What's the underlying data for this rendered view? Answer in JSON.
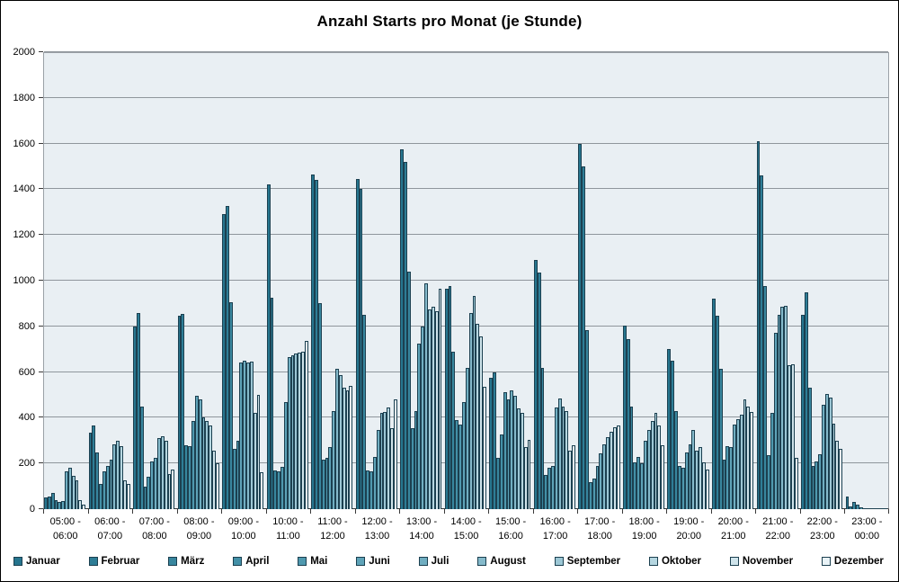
{
  "title": "Anzahl Starts pro Monat (je Stunde)",
  "colors": {
    "plot_background": "#E9EFF3",
    "bar_outline": "#1C4050",
    "gridline": "#8f969c",
    "axis_line": "#3a3a3a"
  },
  "chart_data": {
    "type": "bar",
    "title": "Anzahl Starts pro Monat (je Stunde)",
    "xlabel": "",
    "ylabel": "",
    "ylim": [
      0,
      2000
    ],
    "ytick_step": 200,
    "y_ticks": [
      "0",
      "200",
      "400",
      "600",
      "800",
      "1000",
      "1200",
      "1400",
      "1600",
      "1800",
      "2000"
    ],
    "grid": true,
    "legend_position": "bottom",
    "categories_line1": [
      "05:00 -",
      "06:00 -",
      "07:00 -",
      "08:00 -",
      "09:00 -",
      "10:00 -",
      "11:00 -",
      "12:00 -",
      "13:00 -",
      "14:00 -",
      "15:00 -",
      "16:00 -",
      "17:00 -",
      "18:00 -",
      "19:00 -",
      "20:00 -",
      "21:00 -",
      "22:00 -",
      "23:00 -"
    ],
    "categories_line2": [
      "06:00",
      "07:00",
      "08:00",
      "09:00",
      "10:00",
      "11:00",
      "12:00",
      "13:00",
      "14:00",
      "15:00",
      "16:00",
      "17:00",
      "18:00",
      "19:00",
      "20:00",
      "21:00",
      "22:00",
      "23:00",
      "00:00"
    ],
    "series": [
      {
        "name": "Januar",
        "color": "#26758E",
        "values": [
          50,
          335,
          800,
          845,
          1290,
          1420,
          1465,
          1445,
          1575,
          965,
          575,
          1090,
          1600,
          805,
          700,
          920,
          1610,
          850,
          55
        ]
      },
      {
        "name": "Februar",
        "color": "#2E7D96",
        "values": [
          55,
          365,
          860,
          855,
          1325,
          925,
          1440,
          1400,
          1520,
          975,
          600,
          1035,
          1500,
          745,
          650,
          845,
          1460,
          950,
          10
        ]
      },
      {
        "name": "März",
        "color": "#38869E",
        "values": [
          70,
          250,
          450,
          280,
          905,
          170,
          900,
          850,
          1040,
          690,
          225,
          620,
          785,
          450,
          430,
          615,
          975,
          530,
          30
        ]
      },
      {
        "name": "April",
        "color": "#4390A7",
        "values": [
          40,
          110,
          100,
          275,
          265,
          165,
          215,
          170,
          355,
          390,
          325,
          150,
          120,
          205,
          190,
          215,
          235,
          190,
          20
        ]
      },
      {
        "name": "Mai",
        "color": "#4F99AF",
        "values": [
          30,
          165,
          140,
          385,
          300,
          185,
          225,
          165,
          430,
          370,
          510,
          180,
          135,
          230,
          180,
          275,
          420,
          210,
          8
        ]
      },
      {
        "name": "Juni",
        "color": "#5EA3B8",
        "values": [
          35,
          190,
          210,
          495,
          640,
          470,
          270,
          230,
          725,
          470,
          480,
          190,
          190,
          200,
          250,
          270,
          770,
          240,
          5
        ]
      },
      {
        "name": "Juli",
        "color": "#70AEC1",
        "values": [
          165,
          215,
          225,
          480,
          650,
          665,
          430,
          345,
          800,
          620,
          520,
          445,
          245,
          300,
          285,
          370,
          850,
          455,
          5
        ]
      },
      {
        "name": "August",
        "color": "#85BACB",
        "values": [
          180,
          285,
          310,
          400,
          640,
          675,
          615,
          420,
          990,
          860,
          495,
          485,
          285,
          345,
          345,
          395,
          885,
          505,
          5
        ]
      },
      {
        "name": "September",
        "color": "#9CC7D5",
        "values": [
          145,
          300,
          320,
          385,
          645,
          680,
          585,
          425,
          875,
          935,
          440,
          450,
          315,
          385,
          255,
          415,
          890,
          490,
          5
        ]
      },
      {
        "name": "Oktober",
        "color": "#B5D6E0",
        "values": [
          125,
          275,
          300,
          365,
          420,
          685,
          530,
          445,
          885,
          810,
          420,
          430,
          340,
          420,
          270,
          480,
          630,
          375,
          5
        ]
      },
      {
        "name": "November",
        "color": "#CFE4EB",
        "values": [
          40,
          125,
          155,
          255,
          500,
          690,
          520,
          355,
          865,
          755,
          270,
          255,
          360,
          365,
          205,
          450,
          635,
          300,
          5
        ]
      },
      {
        "name": "Dezember",
        "color": "#E9F3F7",
        "values": [
          20,
          110,
          175,
          200,
          160,
          735,
          540,
          480,
          965,
          535,
          305,
          280,
          365,
          280,
          175,
          425,
          225,
          265,
          5
        ]
      }
    ]
  }
}
